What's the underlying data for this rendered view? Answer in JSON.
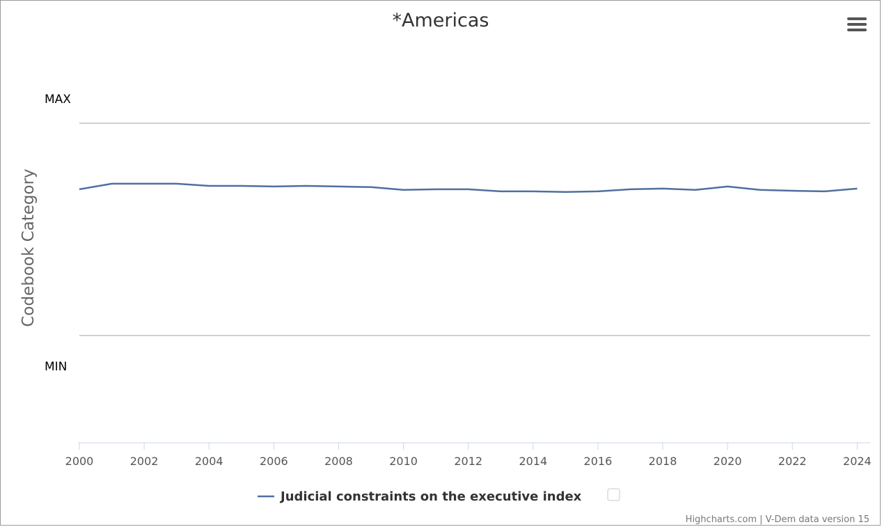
{
  "chart_data": {
    "type": "line",
    "title": "*Americas",
    "ylabel": "Codebook Category",
    "y_tick_labels": [
      "MAX",
      "MIN"
    ],
    "ylim": [
      0,
      1
    ],
    "xlim": [
      2000,
      2024.4
    ],
    "x_ticks": [
      2000,
      2002,
      2004,
      2006,
      2008,
      2010,
      2012,
      2014,
      2016,
      2018,
      2020,
      2022,
      2024
    ],
    "x_tick_labels": [
      "2000",
      "2002",
      "2004",
      "2006",
      "2008",
      "2010",
      "2012",
      "2014",
      "2016",
      "2018",
      "2020",
      "2022",
      "2024"
    ],
    "grid": true,
    "legend": "bottom-center",
    "series": [
      {
        "name": "Judicial constraints on the executive index",
        "color": "#4f6fa0",
        "x": [
          2000,
          2001,
          2002,
          2003,
          2004,
          2005,
          2006,
          2007,
          2008,
          2009,
          2010,
          2011,
          2012,
          2013,
          2014,
          2015,
          2016,
          2017,
          2018,
          2019,
          2020,
          2021,
          2022,
          2023,
          2024
        ],
        "values": [
          0.689,
          0.715,
          0.715,
          0.715,
          0.705,
          0.705,
          0.702,
          0.705,
          0.702,
          0.699,
          0.686,
          0.689,
          0.689,
          0.679,
          0.679,
          0.676,
          0.679,
          0.689,
          0.692,
          0.686,
          0.702,
          0.686,
          0.682,
          0.679,
          0.692
        ]
      }
    ]
  },
  "credits": "Highcharts.com | V-Dem data version 15",
  "menu_icon": "hamburger-menu-icon",
  "legend_checkbox_checked": false
}
